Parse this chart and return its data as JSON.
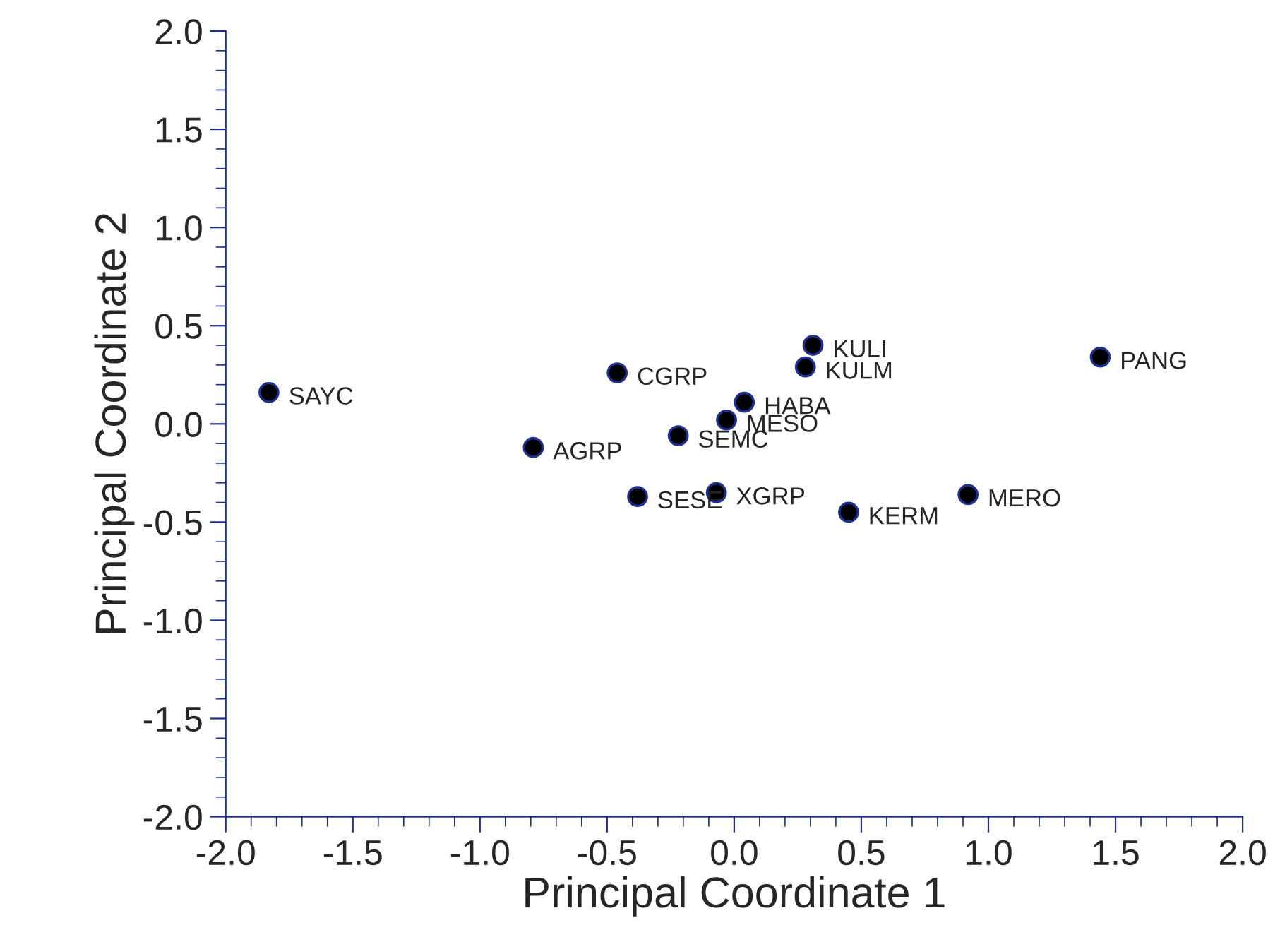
{
  "chart_data": {
    "type": "scatter",
    "xlabel": "Principal Coordinate 1",
    "ylabel": "Principal Coordinate 2",
    "x": [
      -1.83,
      -0.46,
      -0.79,
      -0.22,
      -0.03,
      -0.38,
      -0.07,
      0.04,
      0.31,
      0.28,
      0.45,
      0.92,
      1.44
    ],
    "series": [
      {
        "color": "#000000",
        "values": [
          0.16,
          0.26,
          -0.12,
          -0.06,
          0.02,
          -0.37,
          -0.35,
          0.11,
          0.4,
          0.29,
          -0.45,
          -0.36,
          0.34
        ]
      }
    ],
    "marker": "circle",
    "annotations": [
      {
        "text": "SAYC",
        "x": -1.83,
        "y": 0.16
      },
      {
        "text": "CGRP",
        "x": -0.46,
        "y": 0.26
      },
      {
        "text": "AGRP",
        "x": -0.79,
        "y": -0.12
      },
      {
        "text": "SEMC",
        "x": -0.22,
        "y": -0.06
      },
      {
        "text": "MESO",
        "x": -0.03,
        "y": 0.02
      },
      {
        "text": "SESE",
        "x": -0.38,
        "y": -0.37
      },
      {
        "text": "XGRP",
        "x": -0.07,
        "y": -0.35
      },
      {
        "text": "HABA",
        "x": 0.04,
        "y": 0.11
      },
      {
        "text": "KULI",
        "x": 0.31,
        "y": 0.4
      },
      {
        "text": "KULM",
        "x": 0.28,
        "y": 0.29
      },
      {
        "text": "KERM",
        "x": 0.45,
        "y": -0.45
      },
      {
        "text": "MERO",
        "x": 0.92,
        "y": -0.36
      },
      {
        "text": "PANG",
        "x": 1.44,
        "y": 0.34
      }
    ],
    "xlim": [
      -2.0,
      2.0
    ],
    "ylim": [
      -2.0,
      2.0
    ],
    "xticks": [
      {
        "value": -2,
        "label": "-2.0"
      },
      {
        "value": -1.5,
        "label": "-1.5"
      },
      {
        "value": -1,
        "label": "-1.0"
      },
      {
        "value": -0.5,
        "label": "-0.5"
      },
      {
        "value": 0,
        "label": "0.0"
      },
      {
        "value": 0.5,
        "label": "0.5"
      },
      {
        "value": 1,
        "label": "1.0"
      },
      {
        "value": 1.5,
        "label": "1.5"
      },
      {
        "value": 2,
        "label": "2.0"
      }
    ],
    "yticks": [
      {
        "value": -2,
        "label": "-2.0"
      },
      {
        "value": -1.5,
        "label": "-1.5"
      },
      {
        "value": -1,
        "label": "-1.0"
      },
      {
        "value": -0.5,
        "label": "-0.5"
      },
      {
        "value": 0,
        "label": "0.0"
      },
      {
        "value": 0.5,
        "label": "0.5"
      },
      {
        "value": 1,
        "label": "1.0"
      },
      {
        "value": 1.5,
        "label": "1.5"
      },
      {
        "value": 2,
        "label": "2.0"
      }
    ],
    "grid": false,
    "legend": false
  }
}
